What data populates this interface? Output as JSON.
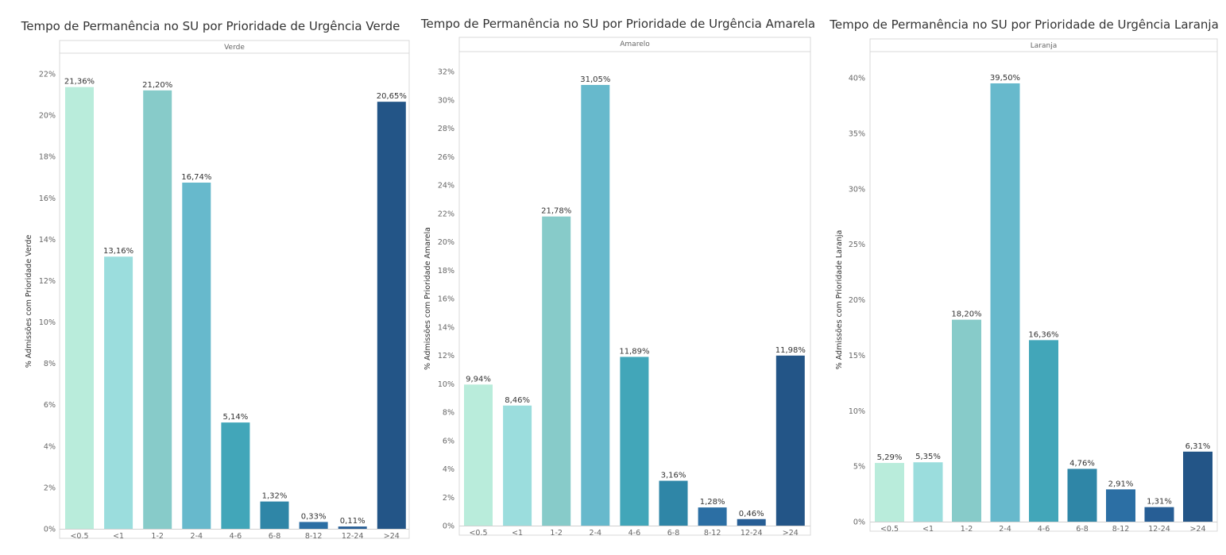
{
  "chart_data": [
    {
      "type": "bar",
      "title": "Tempo de Permanência no SU por Prioridade de Urgência Verde",
      "panel_label": "Verde",
      "ylabel": "% Admissões com Prioridade Verde",
      "categories": [
        "<0.5",
        "<1",
        "1-2",
        "2-4",
        "4-6",
        "6-8",
        "8-12",
        "12-24",
        ">24"
      ],
      "values": [
        21.36,
        13.16,
        21.2,
        16.74,
        5.14,
        1.32,
        0.33,
        0.11,
        20.65
      ],
      "data_labels": [
        "21,36%",
        "13,16%",
        "21,20%",
        "16,74%",
        "5,14%",
        "1,32%",
        "0,33%",
        "0,11%",
        "20,65%"
      ],
      "yticks": [
        0,
        2,
        4,
        6,
        8,
        10,
        12,
        14,
        16,
        18,
        20,
        22
      ],
      "ytick_labels": [
        "0%",
        "2%",
        "4%",
        "6%",
        "8%",
        "10%",
        "12%",
        "14%",
        "16%",
        "18%",
        "20%",
        "22%"
      ],
      "ylim": [
        0,
        22
      ],
      "grid": false
    },
    {
      "type": "bar",
      "title": "Tempo de Permanência no SU por Prioridade de Urgência Amarela",
      "panel_label": "Amarelo",
      "ylabel": "% Admissões com Prioridade Amarela",
      "categories": [
        "<0.5",
        "<1",
        "1-2",
        "2-4",
        "4-6",
        "6-8",
        "8-12",
        "12-24",
        ">24"
      ],
      "values": [
        9.94,
        8.46,
        21.78,
        31.05,
        11.89,
        3.16,
        1.28,
        0.46,
        11.98
      ],
      "data_labels": [
        "9,94%",
        "8,46%",
        "21,78%",
        "31,05%",
        "11,89%",
        "3,16%",
        "1,28%",
        "0,46%",
        "11,98%"
      ],
      "yticks": [
        0,
        2,
        4,
        6,
        8,
        10,
        12,
        14,
        16,
        18,
        20,
        22,
        24,
        26,
        28,
        30,
        32
      ],
      "ytick_labels": [
        "0%",
        "2%",
        "4%",
        "6%",
        "8%",
        "10%",
        "12%",
        "14%",
        "16%",
        "18%",
        "20%",
        "22%",
        "24%",
        "26%",
        "28%",
        "30%",
        "32%"
      ],
      "ylim": [
        0,
        32
      ],
      "grid": false
    },
    {
      "type": "bar",
      "title": "Tempo de Permanência no SU por Prioridade de Urgência Laranja",
      "panel_label": "Laranja",
      "ylabel": "% Admissões com Prioridade Laranja",
      "categories": [
        "<0.5",
        "<1",
        "1-2",
        "2-4",
        "4-6",
        "6-8",
        "8-12",
        "12-24",
        ">24"
      ],
      "values": [
        5.29,
        5.35,
        18.2,
        39.5,
        16.36,
        4.76,
        2.91,
        1.31,
        6.31
      ],
      "data_labels": [
        "5,29%",
        "5,35%",
        "18,20%",
        "39,50%",
        "16,36%",
        "4,76%",
        "2,91%",
        "1,31%",
        "6,31%"
      ],
      "yticks": [
        0,
        5,
        10,
        15,
        20,
        25,
        30,
        35,
        40
      ],
      "ytick_labels": [
        "0%",
        "5%",
        "10%",
        "15%",
        "20%",
        "25%",
        "30%",
        "35%",
        "40%"
      ],
      "ylim": [
        0,
        40
      ],
      "grid": false
    }
  ],
  "bar_colors": [
    "#b9ecdb",
    "#9bdddd",
    "#87cbc9",
    "#67b9cc",
    "#42a6b9",
    "#2f86a7",
    "#2c6fa4",
    "#275e95",
    "#235587"
  ]
}
